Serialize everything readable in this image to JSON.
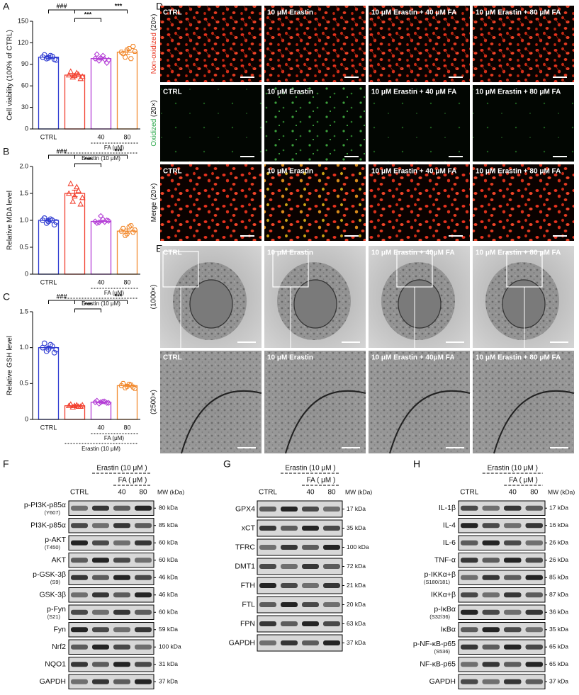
{
  "chart_data": [
    {
      "type": "bar",
      "label": "A",
      "ylabel": "Cell viability (100% of CTRL)",
      "categories": [
        "CTRL",
        null,
        "40",
        "80"
      ],
      "values": [
        100,
        75,
        98,
        107
      ],
      "errors": [
        2,
        2,
        2,
        3
      ],
      "colors": [
        "#2f3bd1",
        "#f2402f",
        "#b43fd6",
        "#f28a2f"
      ],
      "markers": [
        "circle",
        "triangle",
        "diamond",
        "hexagon"
      ],
      "points": [
        [
          100,
          98,
          102,
          97,
          103,
          99,
          101,
          96
        ],
        [
          75,
          72,
          78,
          70,
          80,
          74,
          76,
          73
        ],
        [
          98,
          95,
          102,
          92,
          104,
          99,
          97,
          96
        ],
        [
          107,
          100,
          112,
          115,
          105,
          110,
          98,
          108
        ]
      ],
      "ylim": [
        0,
        150
      ],
      "yticks": [
        0,
        30,
        60,
        90,
        120,
        150
      ],
      "annotations": [
        "###",
        "***",
        "***"
      ],
      "fa_label": "FA (μM)",
      "erastin_label": "Erastin (10 μM)"
    },
    {
      "type": "bar",
      "label": "B",
      "ylabel": "Relative MDA level",
      "categories": [
        "CTRL",
        null,
        "40",
        "80"
      ],
      "values": [
        1.0,
        1.5,
        0.98,
        0.8
      ],
      "errors": [
        0.03,
        0.06,
        0.02,
        0.04
      ],
      "colors": [
        "#2f3bd1",
        "#f2402f",
        "#b43fd6",
        "#f28a2f"
      ],
      "markers": [
        "circle",
        "triangle",
        "diamond",
        "hexagon"
      ],
      "points": [
        [
          1.0,
          0.95,
          1.02,
          0.92,
          1.04,
          0.98,
          1.0,
          0.97
        ],
        [
          1.5,
          1.35,
          1.62,
          1.3,
          1.68,
          1.45,
          1.55,
          1.42
        ],
        [
          0.98,
          0.96,
          1.02,
          1.0,
          0.95,
          1.08,
          0.97,
          0.99
        ],
        [
          0.8,
          0.72,
          0.88,
          0.78,
          0.85,
          0.75,
          0.9,
          0.82
        ]
      ],
      "ylim": [
        0,
        2.0
      ],
      "yticks": [
        0,
        0.5,
        {
          "value": 1,
          "label": "1.0"
        },
        1.5,
        {
          "value": 2,
          "label": "2.0"
        }
      ],
      "annotations": [
        "###",
        "***",
        "***"
      ],
      "fa_label": "FA (μM)",
      "erastin_label": "Erastin (10 μM)"
    },
    {
      "type": "bar",
      "label": "C",
      "ylabel": "Relative GSH level",
      "categories": [
        "CTRL",
        null,
        "40",
        "80"
      ],
      "values": [
        1.0,
        0.19,
        0.24,
        0.47
      ],
      "errors": [
        0.02,
        0.01,
        0.01,
        0.01
      ],
      "colors": [
        "#2f3bd1",
        "#f2402f",
        "#b43fd6",
        "#f28a2f"
      ],
      "markers": [
        "circle",
        "triangle",
        "diamond",
        "hexagon"
      ],
      "points": [
        [
          1.0,
          0.95,
          1.04,
          0.93,
          1.06,
          0.98,
          1.02,
          0.97
        ],
        [
          0.19,
          0.17,
          0.2,
          0.18,
          0.21,
          0.19,
          0.18,
          0.2
        ],
        [
          0.24,
          0.22,
          0.25,
          0.23,
          0.26,
          0.24,
          0.25,
          0.23
        ],
        [
          0.47,
          0.44,
          0.49,
          0.45,
          0.5,
          0.46,
          0.48,
          0.43
        ]
      ],
      "ylim": [
        0,
        1.5
      ],
      "yticks": [
        0,
        0.5,
        {
          "value": 1,
          "label": "1.0"
        },
        1.5
      ],
      "annotations": [
        "###",
        "***",
        "***"
      ],
      "fa_label": "FA (μM)",
      "erastin_label": "Erastin (10 μM)"
    }
  ],
  "fluorescence": {
    "label": "D",
    "columns": [
      "CTRL",
      "10 μM Erastin",
      "10 μM Erastin + 40 μM FA",
      "10 μM Erastin + 80 μM FA"
    ],
    "rows": [
      {
        "stain": "Non-oxidized",
        "magnification": "(20×)"
      },
      {
        "stain": "Oxidized",
        "magnification": "(20×)"
      },
      {
        "stain": "Merge",
        "magnification": "(20×)"
      }
    ]
  },
  "tem": {
    "label": "E",
    "columns": [
      "CTRL",
      "10 μM Erastin",
      "10 μM Erastin + 40μM FA",
      "10 μM Erastin + 80 μM FA"
    ],
    "rows": [
      "(1000×)",
      "(2500×)"
    ]
  },
  "blots": [
    {
      "label": "F",
      "erastin": "Erastin (10 μM )",
      "fa": "FA ( μM )",
      "lanes": [
        "CTRL",
        "40",
        "80"
      ],
      "mw_header": "MW (kDa)",
      "rows": [
        {
          "name": "p-PI3K-p85α",
          "site": "(Y607)",
          "mw": "80 kDa"
        },
        {
          "name": "PI3K-p85α",
          "mw": "85 kDa"
        },
        {
          "name": "p-AKT",
          "site": "(T450)",
          "mw": "60 kDa"
        },
        {
          "name": "AKT",
          "mw": "60 kDa"
        },
        {
          "name": "p-GSK-3β",
          "site": "(S9)",
          "mw": "46 kDa"
        },
        {
          "name": "GSK-3β",
          "mw": "46 kDa"
        },
        {
          "name": "p-Fyn",
          "site": "(S21)",
          "mw": "60 kDa"
        },
        {
          "name": "Fyn",
          "mw": "59 kDa"
        },
        {
          "name": "Nrf2",
          "mw": "100 kDa"
        },
        {
          "name": "NQO1",
          "mw": "31 kDa"
        },
        {
          "name": "GAPDH",
          "mw": "37 kDa"
        }
      ]
    },
    {
      "label": "G",
      "erastin": "Erastin (10 μM )",
      "fa": "FA ( μM )",
      "lanes": [
        "CTRL",
        "40",
        "80"
      ],
      "mw_header": "MW (kDa)",
      "rows": [
        {
          "name": "GPX4",
          "mw": "17 kDa"
        },
        {
          "name": "xCT",
          "mw": "35 kDa"
        },
        {
          "name": "TFRC",
          "mw": "100 kDa"
        },
        {
          "name": "DMT1",
          "mw": "72 kDa"
        },
        {
          "name": "FTH",
          "mw": "21 kDa"
        },
        {
          "name": "FTL",
          "mw": "20 kDa"
        },
        {
          "name": "FPN",
          "mw": "63 kDa"
        },
        {
          "name": "GAPDH",
          "mw": "37 kDa"
        }
      ]
    },
    {
      "label": "H",
      "erastin": "Erastin (10 μM )",
      "fa": "FA ( μM )",
      "lanes": [
        "CTRL",
        "40",
        "80"
      ],
      "mw_header": "MW (kDa)",
      "rows": [
        {
          "name": "IL-1β",
          "mw": "17 kDa"
        },
        {
          "name": "IL-4",
          "mw": "16 kDa"
        },
        {
          "name": "IL-6",
          "mw": "26 kDa"
        },
        {
          "name": "TNF-α",
          "mw": "26 kDa"
        },
        {
          "name": "p-IKKα+β",
          "site": "(S180/181)",
          "mw": "85 kDa"
        },
        {
          "name": "IKKα+β",
          "mw": "87 kDa"
        },
        {
          "name": "p-IκBα",
          "site": "(S32/36)",
          "mw": "36 kDa"
        },
        {
          "name": "IκBα",
          "mw": "35 kDa"
        },
        {
          "name": "p-NF-κB-p65",
          "site": "(S536)",
          "mw": "65 kDa"
        },
        {
          "name": "NF-κB-p65",
          "mw": "65 kDa"
        },
        {
          "name": "GAPDH",
          "mw": "37 kDa"
        }
      ]
    }
  ]
}
